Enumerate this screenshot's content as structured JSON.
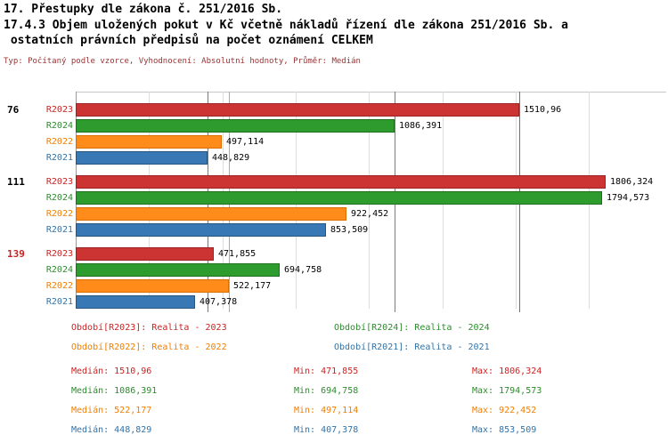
{
  "titles": {
    "line1": "17. Přestupky dle zákona č. 251/2016 Sb.",
    "line2": "17.4.3 Objem uložených pokut v Kč včetně nákladů řízení dle zákona 251/2016 Sb. a",
    "line3": " ostatních právních předpisů na počet oznámení CELKEM",
    "subtitle": "Typ: Počítaný podle vzorce, Vyhodnocení: Absolutní hodnoty, Průměr: Medián"
  },
  "colors": {
    "r2023": {
      "fill": "#cc3333",
      "border": "#992222",
      "text": "#cc2222"
    },
    "r2024": {
      "fill": "#2e9b2e",
      "border": "#1f6f1f",
      "text": "#2e8b2e"
    },
    "r2022": {
      "fill": "#ff8c1a",
      "border": "#d86f00",
      "text": "#f07f00"
    },
    "r2021": {
      "fill": "#3878b4",
      "border": "#24567f",
      "text": "#3273a8"
    },
    "subtitle": "#993333",
    "grid": "#dddddd",
    "axis": "#9a9a9a",
    "value_text": "#000000",
    "group_label_default": "#000000",
    "group_label_highlight": "#cc2222"
  },
  "chart_data": {
    "type": "bar",
    "orientation": "horizontal",
    "unit": "Kč",
    "xlim": [
      0,
      1806.324
    ],
    "gridline_step": 250,
    "series": [
      "R2023",
      "R2024",
      "R2022",
      "R2021"
    ],
    "groups": [
      {
        "label": "76",
        "highlight": false,
        "bars": [
          {
            "series": "R2023",
            "value": 1510.96,
            "label": "1510,96"
          },
          {
            "series": "R2024",
            "value": 1086.391,
            "label": "1086,391"
          },
          {
            "series": "R2022",
            "value": 497.114,
            "label": "497,114"
          },
          {
            "series": "R2021",
            "value": 448.829,
            "label": "448,829"
          }
        ]
      },
      {
        "label": "111",
        "highlight": false,
        "bars": [
          {
            "series": "R2023",
            "value": 1806.324,
            "label": "1806,324"
          },
          {
            "series": "R2024",
            "value": 1794.573,
            "label": "1794,573"
          },
          {
            "series": "R2022",
            "value": 922.452,
            "label": "922,452"
          },
          {
            "series": "R2021",
            "value": 853.509,
            "label": "853,509"
          }
        ]
      },
      {
        "label": "139",
        "highlight": true,
        "bars": [
          {
            "series": "R2023",
            "value": 471.855,
            "label": "471,855"
          },
          {
            "series": "R2024",
            "value": 694.758,
            "label": "694,758"
          },
          {
            "series": "R2022",
            "value": 522.177,
            "label": "522,177"
          },
          {
            "series": "R2021",
            "value": 407.378,
            "label": "407,378"
          }
        ]
      }
    ],
    "median_lines": [
      {
        "series": "R2023",
        "value": 1510.96
      },
      {
        "series": "R2024",
        "value": 1086.391
      },
      {
        "series": "R2022",
        "value": 522.177
      },
      {
        "series": "R2021",
        "value": 448.829
      }
    ]
  },
  "legend": {
    "items": [
      {
        "series": "R2023",
        "text": "Období[R2023]: Realita - 2023"
      },
      {
        "series": "R2024",
        "text": "Období[R2024]: Realita - 2024"
      },
      {
        "series": "R2022",
        "text": "Období[R2022]: Realita - 2022"
      },
      {
        "series": "R2021",
        "text": "Období[R2021]: Realita - 2021"
      }
    ]
  },
  "stats": {
    "rows": [
      {
        "series": "R2023",
        "median": "Medián: 1510,96",
        "min": "Min: 471,855",
        "max": "Max: 1806,324"
      },
      {
        "series": "R2024",
        "median": "Medián: 1086,391",
        "min": "Min: 694,758",
        "max": "Max: 1794,573"
      },
      {
        "series": "R2022",
        "median": "Medián: 522,177",
        "min": "Min: 497,114",
        "max": "Max: 922,452"
      },
      {
        "series": "R2021",
        "median": "Medián: 448,829",
        "min": "Min: 407,378",
        "max": "Max: 853,509"
      }
    ]
  }
}
